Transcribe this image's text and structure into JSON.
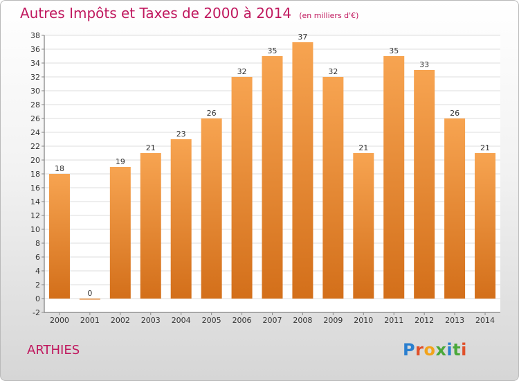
{
  "header": {
    "title": "Autres Impôts et Taxes de 2000 à 2014",
    "unit": "(en milliers d'€)"
  },
  "footer": {
    "commune": "ARTHIES",
    "logo": "Proxiti"
  },
  "colors": {
    "title": "#c0185e",
    "bar_light": "#f7a451",
    "bar_dark": "#d36f1a",
    "logo_letters": [
      "#2a7fcf",
      "#e0502a",
      "#f2a31b",
      "#4aa83a",
      "#2a7fcf",
      "#4aa83a",
      "#e0502a"
    ]
  },
  "chart_data": {
    "type": "bar",
    "title": "Autres Impôts et Taxes de 2000 à 2014",
    "subtitle": "(en milliers d'€)",
    "categories": [
      "2000",
      "2001",
      "2002",
      "2003",
      "2004",
      "2005",
      "2006",
      "2007",
      "2008",
      "2009",
      "2010",
      "2011",
      "2012",
      "2013",
      "2014"
    ],
    "values": [
      18,
      0,
      19,
      21,
      23,
      26,
      32,
      35,
      37,
      32,
      21,
      35,
      33,
      26,
      21
    ],
    "ylim": [
      -2,
      38
    ],
    "yticks": [
      -2,
      0,
      2,
      4,
      6,
      8,
      10,
      12,
      14,
      16,
      18,
      20,
      22,
      24,
      26,
      28,
      30,
      32,
      34,
      36,
      38
    ],
    "grid": true,
    "legend": "none"
  }
}
